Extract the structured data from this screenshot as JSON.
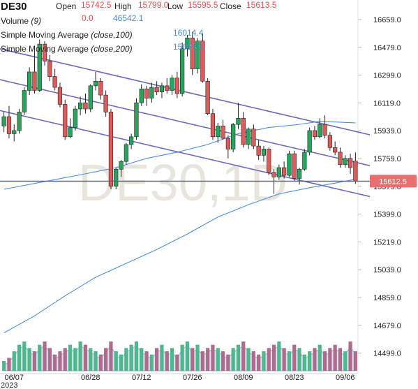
{
  "header": {
    "symbol": "DE30",
    "open_label": "Open",
    "open_value": "15742.5",
    "high_label": "High",
    "high_value": "15799.0",
    "low_label": "Low",
    "low_value": "15595.5",
    "close_label": "Close",
    "close_value": "15613.5",
    "volume_label": "Volume",
    "volume_param": "(9)",
    "volume_value1": "0.0",
    "volume_value2": "46542.1",
    "sma100_label": "Simple Moving Average",
    "sma100_param": "(close,100)",
    "sma100_value": "16014.4",
    "sma200_label": "Simple Moving Average",
    "sma200_param": "(close,200)",
    "sma200_value": "15623.5"
  },
  "watermark": "DE30,1D",
  "last_price_label": "15612.5",
  "colors": {
    "up": "#26a65b",
    "down": "#e05a5a",
    "sma": "#4a8fe0",
    "channel": "#6b6bbf",
    "price_line": "#5a5aaa",
    "value_red": "#d9534f",
    "value_blue": "#4a90d9",
    "vol_green": "#4fb88a",
    "vol_red": "#b06a8a",
    "vol_area": "#c8d8f0",
    "price_badge": "#e87070"
  },
  "chart_data": {
    "type": "candlestick",
    "xlabel": "",
    "ylabel": "",
    "ylim": [
      14420,
      16740
    ],
    "y_ticks": [
      16659.0,
      16479.0,
      16299.0,
      16119.0,
      15939.0,
      15759.0,
      15579.0,
      15399.0,
      15219.0,
      15039.0,
      14859.0,
      14679.0,
      14499.0
    ],
    "y_tick_labels": [
      "16659.0",
      "16479.0",
      "16299.0",
      "16119.0",
      "15939.0",
      "15759.0",
      "15579.0",
      "15399.0",
      "15219.0",
      "15039.0",
      "14859.0",
      "14679.0",
      "14499.0"
    ],
    "x_tick_labels": [
      {
        "index": 2,
        "label": "06/07"
      },
      {
        "index": 17,
        "label": "06/28"
      },
      {
        "index": 27,
        "label": "07/12"
      },
      {
        "index": 37,
        "label": "07/26"
      },
      {
        "index": 47,
        "label": "08/09"
      },
      {
        "index": 57,
        "label": "08/23"
      },
      {
        "index": 67,
        "label": "09/06"
      }
    ],
    "year_label": "2023",
    "last_price": 15612.5,
    "candles": [
      {
        "o": 15970,
        "h": 16060,
        "l": 15930,
        "c": 16030
      },
      {
        "o": 16030,
        "h": 16100,
        "l": 15890,
        "c": 15920
      },
      {
        "o": 15920,
        "h": 15980,
        "l": 15870,
        "c": 15940
      },
      {
        "o": 15940,
        "h": 16080,
        "l": 15920,
        "c": 16060
      },
      {
        "o": 16060,
        "h": 16220,
        "l": 16040,
        "c": 16200
      },
      {
        "o": 16200,
        "h": 16350,
        "l": 16170,
        "c": 16320
      },
      {
        "o": 16320,
        "h": 16460,
        "l": 16180,
        "c": 16200
      },
      {
        "o": 16200,
        "h": 16530,
        "l": 16190,
        "c": 16500
      },
      {
        "o": 16500,
        "h": 16520,
        "l": 16360,
        "c": 16390
      },
      {
        "o": 16390,
        "h": 16430,
        "l": 16260,
        "c": 16290
      },
      {
        "o": 16290,
        "h": 16340,
        "l": 16200,
        "c": 16220
      },
      {
        "o": 16220,
        "h": 16250,
        "l": 16090,
        "c": 16110
      },
      {
        "o": 16110,
        "h": 16140,
        "l": 15880,
        "c": 15900
      },
      {
        "o": 15900,
        "h": 16020,
        "l": 15890,
        "c": 15960
      },
      {
        "o": 15960,
        "h": 16100,
        "l": 15940,
        "c": 16080
      },
      {
        "o": 16080,
        "h": 16160,
        "l": 16040,
        "c": 16120
      },
      {
        "o": 16120,
        "h": 16180,
        "l": 16050,
        "c": 16080
      },
      {
        "o": 16080,
        "h": 16240,
        "l": 16060,
        "c": 16230
      },
      {
        "o": 16230,
        "h": 16320,
        "l": 16200,
        "c": 16260
      },
      {
        "o": 16260,
        "h": 16280,
        "l": 16140,
        "c": 16170
      },
      {
        "o": 16170,
        "h": 16200,
        "l": 16030,
        "c": 16060
      },
      {
        "o": 16060,
        "h": 16080,
        "l": 15560,
        "c": 15580
      },
      {
        "o": 15580,
        "h": 15700,
        "l": 15560,
        "c": 15690
      },
      {
        "o": 15690,
        "h": 15750,
        "l": 15640,
        "c": 15740
      },
      {
        "o": 15740,
        "h": 15860,
        "l": 15720,
        "c": 15850
      },
      {
        "o": 15850,
        "h": 15920,
        "l": 15820,
        "c": 15900
      },
      {
        "o": 15900,
        "h": 16150,
        "l": 15880,
        "c": 16120
      },
      {
        "o": 16120,
        "h": 16240,
        "l": 16100,
        "c": 16210
      },
      {
        "o": 16210,
        "h": 16230,
        "l": 16100,
        "c": 16150
      },
      {
        "o": 16150,
        "h": 16250,
        "l": 16120,
        "c": 16220
      },
      {
        "o": 16220,
        "h": 16260,
        "l": 16170,
        "c": 16190
      },
      {
        "o": 16190,
        "h": 16250,
        "l": 16150,
        "c": 16230
      },
      {
        "o": 16230,
        "h": 16280,
        "l": 16180,
        "c": 16200
      },
      {
        "o": 16200,
        "h": 16300,
        "l": 16170,
        "c": 16280
      },
      {
        "o": 16280,
        "h": 16320,
        "l": 16150,
        "c": 16180
      },
      {
        "o": 16180,
        "h": 16510,
        "l": 16160,
        "c": 16470
      },
      {
        "o": 16470,
        "h": 16560,
        "l": 16420,
        "c": 16540
      },
      {
        "o": 16540,
        "h": 16580,
        "l": 16300,
        "c": 16340
      },
      {
        "o": 16340,
        "h": 16540,
        "l": 16310,
        "c": 16520
      },
      {
        "o": 16520,
        "h": 16570,
        "l": 16250,
        "c": 16260
      },
      {
        "o": 16260,
        "h": 16280,
        "l": 16040,
        "c": 16050
      },
      {
        "o": 16050,
        "h": 16080,
        "l": 15880,
        "c": 15900
      },
      {
        "o": 15900,
        "h": 15990,
        "l": 15860,
        "c": 15970
      },
      {
        "o": 15970,
        "h": 16010,
        "l": 15880,
        "c": 15890
      },
      {
        "o": 15890,
        "h": 15910,
        "l": 15760,
        "c": 15820
      },
      {
        "o": 15820,
        "h": 15990,
        "l": 15800,
        "c": 15980
      },
      {
        "o": 15980,
        "h": 16120,
        "l": 15950,
        "c": 16020
      },
      {
        "o": 16020,
        "h": 16060,
        "l": 15830,
        "c": 15850
      },
      {
        "o": 15850,
        "h": 15960,
        "l": 15820,
        "c": 15950
      },
      {
        "o": 15950,
        "h": 15980,
        "l": 15820,
        "c": 15840
      },
      {
        "o": 15840,
        "h": 15880,
        "l": 15750,
        "c": 15780
      },
      {
        "o": 15780,
        "h": 15840,
        "l": 15740,
        "c": 15820
      },
      {
        "o": 15820,
        "h": 15830,
        "l": 15650,
        "c": 15670
      },
      {
        "o": 15670,
        "h": 15690,
        "l": 15530,
        "c": 15640
      },
      {
        "o": 15640,
        "h": 15720,
        "l": 15620,
        "c": 15700
      },
      {
        "o": 15700,
        "h": 15740,
        "l": 15630,
        "c": 15650
      },
      {
        "o": 15650,
        "h": 15810,
        "l": 15640,
        "c": 15790
      },
      {
        "o": 15790,
        "h": 15810,
        "l": 15610,
        "c": 15630
      },
      {
        "o": 15630,
        "h": 15700,
        "l": 15590,
        "c": 15690
      },
      {
        "o": 15690,
        "h": 15820,
        "l": 15680,
        "c": 15800
      },
      {
        "o": 15800,
        "h": 15960,
        "l": 15780,
        "c": 15940
      },
      {
        "o": 15940,
        "h": 15970,
        "l": 15880,
        "c": 15900
      },
      {
        "o": 15900,
        "h": 16020,
        "l": 15890,
        "c": 15980
      },
      {
        "o": 15980,
        "h": 16040,
        "l": 15890,
        "c": 15910
      },
      {
        "o": 15910,
        "h": 15930,
        "l": 15810,
        "c": 15830
      },
      {
        "o": 15830,
        "h": 15870,
        "l": 15780,
        "c": 15800
      },
      {
        "o": 15800,
        "h": 15830,
        "l": 15700,
        "c": 15720
      },
      {
        "o": 15720,
        "h": 15780,
        "l": 15700,
        "c": 15760
      },
      {
        "o": 15760,
        "h": 15790,
        "l": 15660,
        "c": 15700
      },
      {
        "o": 15742.5,
        "h": 15799.0,
        "l": 15595.5,
        "c": 15613.5
      }
    ],
    "volume": [
      3,
      4,
      6,
      8,
      9,
      7,
      6,
      8,
      9,
      7,
      5,
      6,
      7,
      8,
      7,
      9,
      8,
      7,
      6,
      5,
      7,
      9,
      6,
      5,
      7,
      8,
      9,
      7,
      6,
      5,
      7,
      8,
      6,
      7,
      5,
      8,
      9,
      7,
      8,
      6,
      7,
      8,
      7,
      6,
      5,
      7,
      8,
      9,
      7,
      6,
      5,
      6,
      7,
      8,
      9,
      7,
      6,
      8,
      7,
      5,
      6,
      7,
      8,
      6,
      7,
      8,
      7,
      6,
      9,
      6
    ],
    "sma100": [
      [
        0,
        15560
      ],
      [
        8,
        15610
      ],
      [
        16,
        15660
      ],
      [
        22,
        15700
      ],
      [
        28,
        15760
      ],
      [
        34,
        15800
      ],
      [
        40,
        15850
      ],
      [
        46,
        15920
      ],
      [
        52,
        15960
      ],
      [
        58,
        15980
      ],
      [
        62,
        16000
      ],
      [
        69,
        15990
      ]
    ],
    "sma200": [
      [
        0,
        14630
      ],
      [
        6,
        14740
      ],
      [
        12,
        14870
      ],
      [
        18,
        14990
      ],
      [
        24,
        15080
      ],
      [
        30,
        15170
      ],
      [
        36,
        15270
      ],
      [
        42,
        15380
      ],
      [
        48,
        15460
      ],
      [
        54,
        15530
      ],
      [
        60,
        15570
      ],
      [
        65,
        15600
      ],
      [
        69,
        15625
      ]
    ],
    "channel_lines": [
      [
        [
          0,
          16470
        ],
        [
          69,
          15940
        ]
      ],
      [
        [
          0,
          16270
        ],
        [
          69,
          15740
        ]
      ],
      [
        [
          0,
          16070
        ],
        [
          69,
          15540
        ]
      ]
    ]
  }
}
